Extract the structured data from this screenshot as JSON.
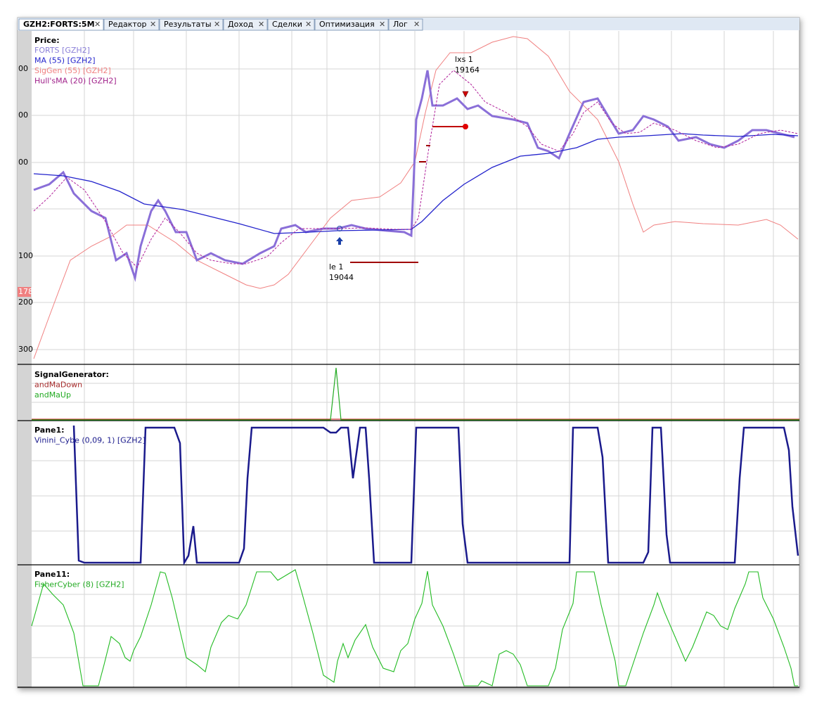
{
  "tabs": [
    "GZH2:FORTS:5M",
    "Редактор",
    "Результаты",
    "Доход",
    "Сделки",
    "Оптимизация",
    "Лог"
  ],
  "price_pane": {
    "title": "Price:",
    "legend": [
      "FORTS [GZH2]",
      "MA (55) [GZH2]",
      "SigGen (55) [GZH2]",
      "Hull'sMA (20) [GZH2]"
    ],
    "axis_labels": [
      "00",
      "00",
      "00",
      "100",
      "178",
      "200",
      "300"
    ],
    "annotations": [
      {
        "label": "lxs 1",
        "price": "19164"
      },
      {
        "label": "le 1",
        "price": "19044"
      }
    ]
  },
  "signal_pane": {
    "title": "SignalGenerator:",
    "legend": [
      "andMaDown",
      "andMaUp"
    ]
  },
  "pane1": {
    "title": "Pane1:",
    "legend": [
      "Vinini_Cybe (0,09, 1) [GZH2]"
    ]
  },
  "pane11": {
    "title": "Pane11:",
    "legend": [
      "FisherCyber (8) [GZH2]"
    ]
  }
}
